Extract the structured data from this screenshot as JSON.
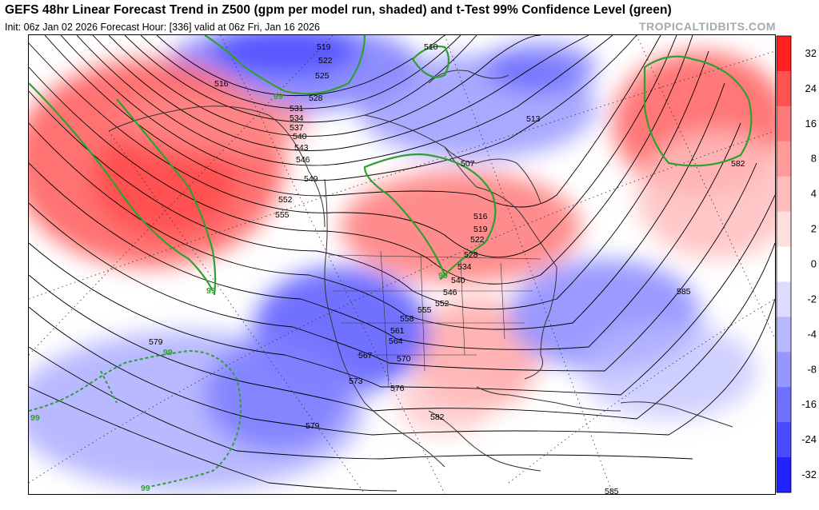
{
  "header": {
    "title": "GEFS 48hr Linear Forecast Trend in Z500 (gpm per model run, shaded) and t-Test 99% Confidence Level (green)",
    "subtitle": "Init: 06z Jan 02 2026   Forecast Hour: [336]   valid at 06z Fri, Jan 16 2026",
    "credit": "TROPICALTIDBITS.COM"
  },
  "colorbar": {
    "ticks": [
      "32",
      "24",
      "16",
      "8",
      "4",
      "2",
      "0",
      "-2",
      "-4",
      "-8",
      "-16",
      "-24",
      "-32"
    ],
    "colors": [
      "#ff2020",
      "#ff5252",
      "#ff7a7a",
      "#ff9a9a",
      "#ffbcbc",
      "#ffdede",
      "#ffffff",
      "#dcdcff",
      "#b8b8ff",
      "#9696ff",
      "#7070ff",
      "#4a4aff",
      "#2222ff"
    ]
  },
  "map": {
    "contour_labels": [
      "519",
      "522",
      "525",
      "528",
      "531",
      "534",
      "537",
      "540",
      "543",
      "546",
      "549",
      "552",
      "555",
      "516",
      "510",
      "513",
      "507",
      "516",
      "519",
      "522",
      "528",
      "534",
      "540",
      "546",
      "552",
      "555",
      "558",
      "561",
      "564",
      "567",
      "570",
      "573",
      "576",
      "579",
      "579",
      "582",
      "582",
      "585",
      "585"
    ],
    "significance_labels": [
      "99",
      "99",
      "99",
      "99",
      "99",
      "99"
    ],
    "colors": {
      "positive": "#ff6666",
      "negative": "#6b6bff",
      "significance": "#2fa02f",
      "contour": "#000000"
    }
  }
}
